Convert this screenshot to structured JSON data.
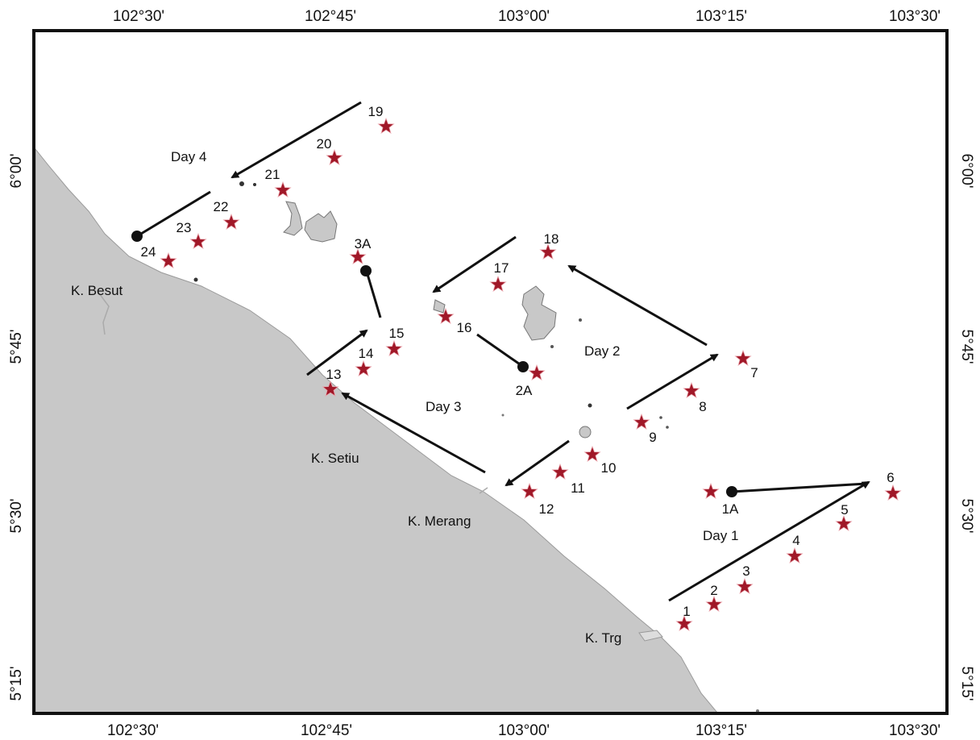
{
  "map": {
    "longitude_ticks": [
      "102°30'",
      "102°45'",
      "103°00'",
      "103°15'",
      "103°30'"
    ],
    "latitude_ticks": [
      "6°00'",
      "5°45'",
      "5°30'",
      "5°15'"
    ],
    "places": [
      {
        "key": "k-besut",
        "label": "K. Besut"
      },
      {
        "key": "k-setiu",
        "label": "K. Setiu"
      },
      {
        "key": "k-merang",
        "label": "K. Merang"
      },
      {
        "key": "k-trg",
        "label": "K. Trg"
      }
    ],
    "days": [
      "Day 1",
      "Day 2",
      "Day 3",
      "Day 4"
    ],
    "stations": [
      "1",
      "2",
      "3",
      "4",
      "5",
      "6",
      "7",
      "8",
      "9",
      "10",
      "11",
      "12",
      "13",
      "14",
      "15",
      "16",
      "17",
      "18",
      "19",
      "20",
      "21",
      "22",
      "23",
      "24"
    ],
    "start_points": [
      "1A",
      "2A",
      "3A"
    ],
    "colors": {
      "land": "#c8c8c8",
      "land_edge": "#9a9a9a",
      "station": "#a01828",
      "arrow": "#111111",
      "frame": "#111111"
    }
  }
}
